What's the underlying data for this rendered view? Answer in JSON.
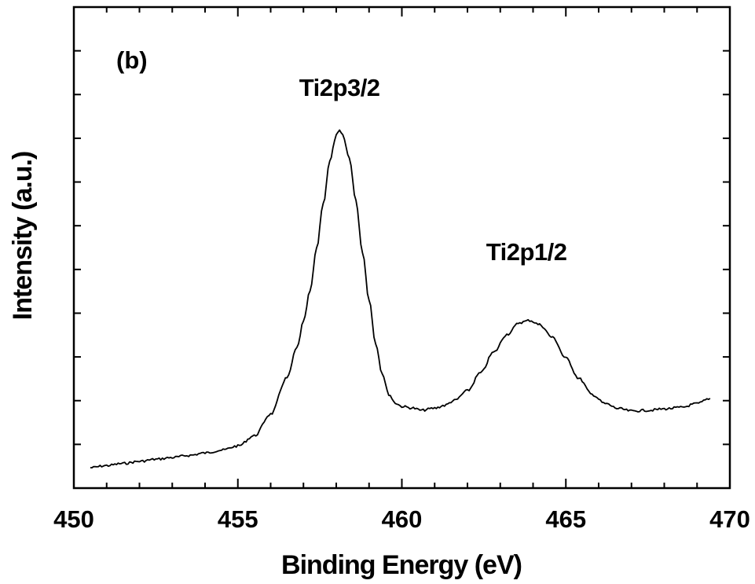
{
  "chart_data": {
    "type": "line",
    "panel_label": "(b)",
    "xlabel": "Binding Energy (eV)",
    "ylabel": "Intensity (a.u.)",
    "xlim": [
      450,
      470
    ],
    "ylim": [
      0,
      100
    ],
    "x_ticks": [
      450,
      455,
      460,
      465,
      470
    ],
    "x_tick_labels": [
      "450",
      "455",
      "460",
      "465",
      "470"
    ],
    "y_tick_labels_shown": false,
    "grid": false,
    "legend": "none",
    "line_color": "#000000",
    "annotations": [
      {
        "text": "Ti2p3/2",
        "x": 458.1,
        "y": 100
      },
      {
        "text": "Ti2p1/2",
        "x": 463.8,
        "y": 53
      }
    ],
    "series": [
      {
        "x": [
          450.5,
          451.0,
          451.5,
          452.0,
          452.5,
          453.0,
          453.5,
          454.0,
          454.5,
          455.0,
          455.5,
          456.0,
          456.5,
          456.8,
          457.0,
          457.2,
          457.4,
          457.6,
          457.8,
          458.0,
          458.1,
          458.2,
          458.4,
          458.6,
          458.8,
          459.0,
          459.2,
          459.4,
          459.6,
          459.8,
          460.0,
          460.3,
          460.6,
          461.0,
          461.3,
          461.6,
          462.0,
          462.4,
          462.8,
          463.2,
          463.6,
          463.9,
          464.2,
          464.6,
          465.0,
          465.4,
          465.8,
          466.2,
          466.6,
          467.0,
          467.5,
          468.0,
          468.5,
          469.0,
          469.4
        ],
        "y": [
          0.0,
          0.6,
          1.2,
          1.8,
          2.4,
          2.9,
          3.5,
          4.2,
          5.0,
          6.2,
          9.1,
          15.3,
          25.7,
          34.2,
          41.7,
          50.4,
          62.5,
          75.4,
          87.5,
          94.9,
          96.3,
          94.9,
          88.5,
          76.2,
          61.7,
          48.1,
          35.6,
          27.0,
          21.0,
          18.5,
          17.5,
          17.1,
          16.4,
          17.0,
          17.8,
          19.2,
          22.0,
          27.1,
          33.0,
          38.1,
          41.5,
          42.1,
          40.9,
          37.2,
          31.3,
          25.5,
          20.9,
          18.3,
          16.9,
          16.2,
          16.4,
          16.8,
          17.2,
          18.3,
          19.8
        ]
      }
    ]
  }
}
